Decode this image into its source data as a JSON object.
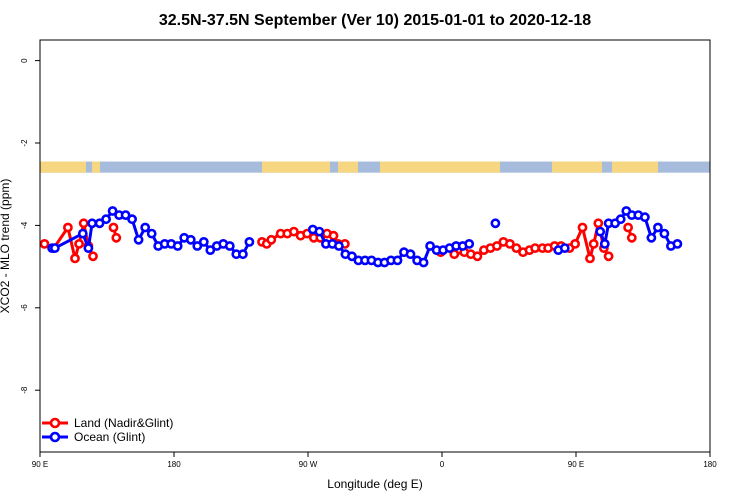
{
  "chart_data": {
    "type": "line",
    "title": "32.5N-37.5N September (Ver 10)   2015-01-01 to 2020-12-18",
    "xlabel": "Longitude (deg E)",
    "ylabel": "XCO2 - MLO trend (ppm)",
    "xlim": [
      90,
      450
    ],
    "ylim": [
      -9.5,
      0.5
    ],
    "x_ticks": [
      {
        "value": 90,
        "label": "90 E"
      },
      {
        "value": 162,
        "label": "180"
      },
      {
        "value": 234,
        "label": "90 W"
      },
      {
        "value": 306,
        "label": "0"
      },
      {
        "value": 378,
        "label": "90 E"
      },
      {
        "value": 450,
        "label": "180"
      }
    ],
    "y_ticks": [
      {
        "value": 0,
        "label": "0"
      },
      {
        "value": -2,
        "label": "-2"
      },
      {
        "value": -4,
        "label": "-4"
      },
      {
        "value": -6,
        "label": "-6"
      },
      {
        "value": -8,
        "label": "-8"
      }
    ],
    "legend_position": "bottom-left",
    "map_strip": {
      "y_range": [
        -2.45,
        -2.72
      ],
      "ocean_color": "#a7bbdc",
      "land_color": "#f6d680"
    },
    "series": [
      {
        "name": "Land (Nadir&Glint)",
        "color": "#ff0000",
        "segments": [
          [
            [
              92.4,
              -4.45
            ],
            [
              97.4,
              -4.55
            ],
            [
              105,
              -4.05
            ],
            [
              108.8,
              -4.8
            ],
            [
              111,
              -4.45
            ],
            [
              113.5,
              -3.95
            ],
            [
              116,
              -4.5
            ],
            [
              118.5,
              -4.75
            ]
          ],
          [
            [
              129.5,
              -4.05
            ],
            [
              131,
              -4.3
            ]
          ],
          [
            [
              209.3,
              -4.4
            ],
            [
              211.8,
              -4.45
            ]
          ],
          [
            [
              214.3,
              -4.35
            ],
            [
              219.3,
              -4.2
            ],
            [
              222.9,
              -4.2
            ],
            [
              226.4,
              -4.15
            ],
            [
              230,
              -4.25
            ],
            [
              233.5,
              -4.2
            ],
            [
              237.1,
              -4.3
            ],
            [
              240.6,
              -4.3
            ],
            [
              244.2,
              -4.2
            ],
            [
              247.7,
              -4.25
            ],
            [
              250.2,
              -4.45
            ],
            [
              253.8,
              -4.45
            ]
          ],
          [
            [
              305.3,
              -4.65
            ]
          ],
          [
            [
              312.6,
              -4.7
            ],
            [
              318,
              -4.65
            ],
            [
              321.5,
              -4.7
            ],
            [
              325,
              -4.75
            ],
            [
              328.5,
              -4.6
            ],
            [
              332,
              -4.55
            ],
            [
              335.5,
              -4.5
            ],
            [
              339,
              -4.4
            ],
            [
              342.5,
              -4.45
            ],
            [
              346,
              -4.55
            ],
            [
              349.5,
              -4.65
            ],
            [
              353,
              -4.6
            ],
            [
              356,
              -4.55
            ],
            [
              360,
              -4.55
            ],
            [
              363,
              -4.55
            ],
            [
              366.5,
              -4.5
            ],
            [
              370,
              -4.5
            ]
          ],
          [
            [
              374.5,
              -4.55
            ],
            [
              377.5,
              -4.45
            ],
            [
              381.5,
              -4.05
            ],
            [
              385.5,
              -4.8
            ],
            [
              387.5,
              -4.45
            ],
            [
              390,
              -3.95
            ],
            [
              393,
              -4.55
            ],
            [
              395.5,
              -4.75
            ]
          ],
          [
            [
              406,
              -4.05
            ],
            [
              408,
              -4.3
            ]
          ]
        ]
      },
      {
        "name": "Ocean (Glint)",
        "color": "#0000ff",
        "segments": [
          [
            [
              96.5,
              -4.55
            ],
            [
              98,
              -4.55
            ],
            [
              113,
              -4.2
            ],
            [
              116,
              -4.55
            ],
            [
              118,
              -3.95
            ],
            [
              122,
              -3.95
            ],
            [
              125.5,
              -3.85
            ],
            [
              129,
              -3.65
            ],
            [
              132.5,
              -3.75
            ],
            [
              136,
              -3.75
            ],
            [
              139.5,
              -3.85
            ],
            [
              143,
              -4.35
            ],
            [
              146.5,
              -4.05
            ],
            [
              150,
              -4.2
            ],
            [
              153.5,
              -4.5
            ],
            [
              157,
              -4.45
            ],
            [
              160.5,
              -4.45
            ],
            [
              164,
              -4.5
            ],
            [
              167.5,
              -4.3
            ],
            [
              171,
              -4.35
            ],
            [
              174.5,
              -4.5
            ],
            [
              178,
              -4.4
            ],
            [
              181.5,
              -4.6
            ],
            [
              185,
              -4.5
            ],
            [
              188.5,
              -4.45
            ],
            [
              192,
              -4.5
            ],
            [
              195.5,
              -4.7
            ],
            [
              199,
              -4.7
            ],
            [
              202.5,
              -4.4
            ]
          ],
          [
            [
              236.6,
              -4.1
            ],
            [
              240.1,
              -4.15
            ],
            [
              243.6,
              -4.45
            ],
            [
              247.1,
              -4.45
            ],
            [
              250.6,
              -4.5
            ],
            [
              254.1,
              -4.7
            ],
            [
              257.6,
              -4.75
            ],
            [
              261.1,
              -4.85
            ],
            [
              264.6,
              -4.85
            ],
            [
              268.1,
              -4.85
            ],
            [
              271.6,
              -4.9
            ],
            [
              275.1,
              -4.9
            ],
            [
              278.6,
              -4.85
            ],
            [
              282.1,
              -4.85
            ],
            [
              285.6,
              -4.65
            ],
            [
              289.1,
              -4.7
            ],
            [
              292.6,
              -4.85
            ],
            [
              296.1,
              -4.9
            ],
            [
              299.6,
              -4.5
            ],
            [
              303.1,
              -4.6
            ],
            [
              306.6,
              -4.6
            ],
            [
              310.1,
              -4.55
            ],
            [
              313.6,
              -4.5
            ],
            [
              317.1,
              -4.5
            ],
            [
              320.6,
              -4.45
            ]
          ],
          [
            [
              334.7,
              -3.95
            ]
          ],
          [
            [
              368.5,
              -4.6
            ],
            [
              372,
              -4.55
            ]
          ],
          [
            [
              391,
              -4.15
            ],
            [
              393.5,
              -4.45
            ],
            [
              395.5,
              -3.95
            ],
            [
              399,
              -3.95
            ],
            [
              402,
              -3.85
            ],
            [
              405,
              -3.65
            ],
            [
              408,
              -3.75
            ],
            [
              411.5,
              -3.75
            ],
            [
              415,
              -3.8
            ],
            [
              418.5,
              -4.3
            ],
            [
              422,
              -4.05
            ],
            [
              425.5,
              -4.2
            ],
            [
              429,
              -4.5
            ],
            [
              432.5,
              -4.45
            ]
          ]
        ]
      }
    ]
  }
}
